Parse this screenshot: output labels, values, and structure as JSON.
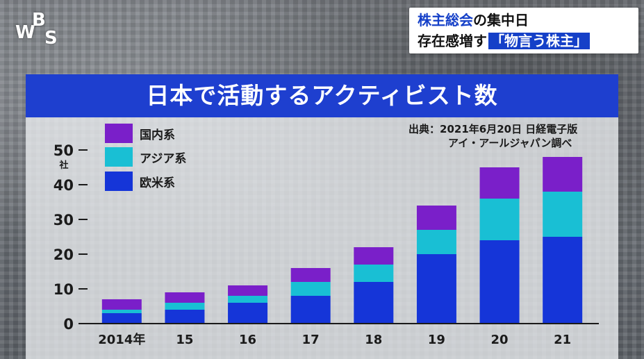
{
  "logo": {
    "letters": [
      "W",
      "B",
      "S"
    ]
  },
  "headline": {
    "line1_accent": "株主総会",
    "line1_rest": "の集中日",
    "line2_plain": "存在感増す",
    "line2_boxed": "「物言う株主」"
  },
  "colors": {
    "domestic": "#7a1fc9",
    "asia": "#19bfd4",
    "west": "#1535d8",
    "title_bar": "#1e3fcf"
  },
  "source": {
    "label": "出典：",
    "line1": "2021年6月20日 日経電子版",
    "line2": "アイ・アールジャパン調べ"
  },
  "chart_data": {
    "type": "bar",
    "stacked": true,
    "title": "日本で活動するアクティビスト数",
    "ylabel": "社",
    "ylim": [
      0,
      50
    ],
    "yticks": [
      0,
      10,
      20,
      30,
      40,
      50
    ],
    "categories": [
      "2014年",
      "15",
      "16",
      "17",
      "18",
      "19",
      "20",
      "21"
    ],
    "series": [
      {
        "name": "欧米系",
        "color": "#1535d8",
        "values": [
          3,
          4,
          6,
          8,
          12,
          20,
          24,
          25
        ]
      },
      {
        "name": "アジア系",
        "color": "#19bfd4",
        "values": [
          1,
          2,
          2,
          4,
          5,
          7,
          12,
          13
        ]
      },
      {
        "name": "国内系",
        "color": "#7a1fc9",
        "values": [
          3,
          3,
          3,
          4,
          5,
          7,
          9,
          10
        ]
      }
    ],
    "legend_position": "top-left",
    "legend_order": [
      "国内系",
      "アジア系",
      "欧米系"
    ],
    "grid": false
  }
}
